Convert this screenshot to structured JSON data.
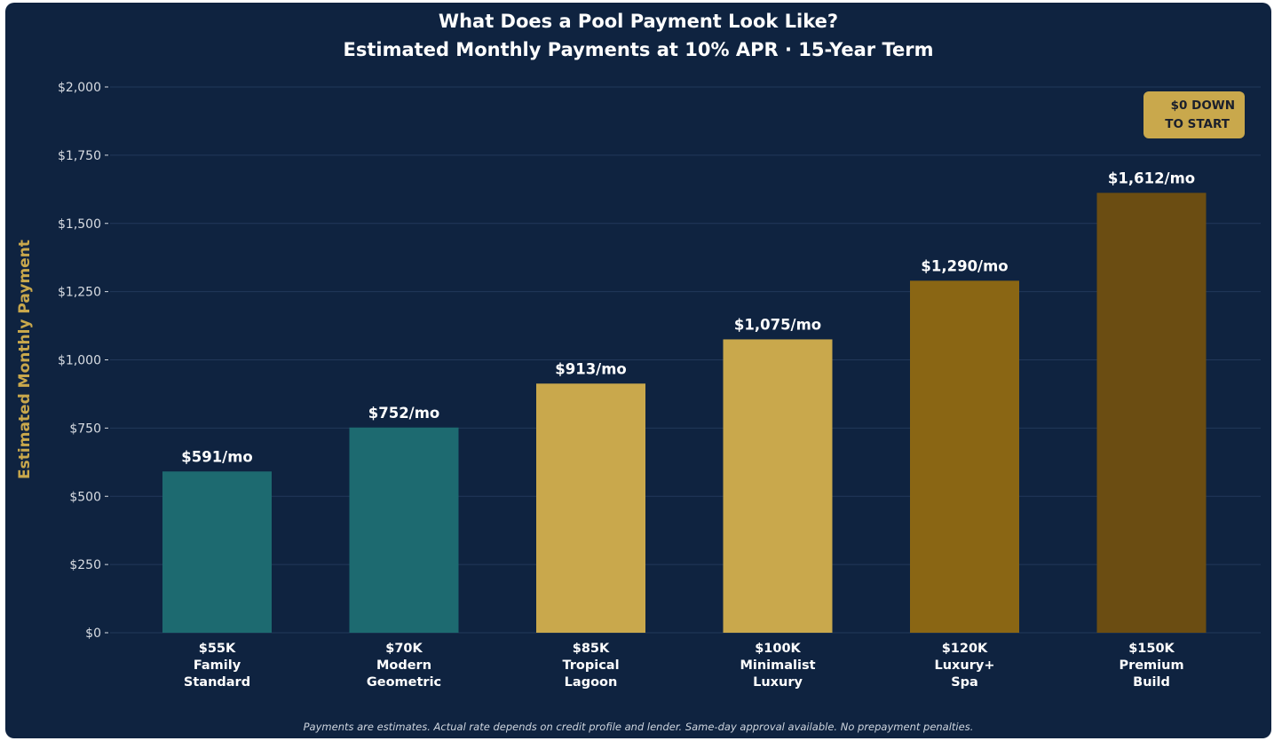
{
  "chart_data": {
    "type": "bar",
    "title": "What Does a Pool Payment Look Like?",
    "subtitle": "Estimated Monthly Payments at 10% APR · 15-Year Term",
    "ylabel": "Estimated Monthly Payment",
    "xlabel": "",
    "ylim": [
      0,
      2000
    ],
    "yticks": [
      "$2,000",
      "$1,750",
      "$1,500",
      "$1,250",
      "$1,000",
      "$750",
      "$500",
      "$250",
      "$0"
    ],
    "ytick_values": [
      2000,
      1750,
      1500,
      1250,
      1000,
      750,
      500,
      250,
      0
    ],
    "grid": true,
    "categories": [
      [
        "$55K",
        "Family",
        "Standard"
      ],
      [
        "$70K",
        "Modern",
        "Geometric"
      ],
      [
        "$85K",
        "Tropical",
        "Lagoon"
      ],
      [
        "$100K",
        "Minimalist",
        "Luxury"
      ],
      [
        "$120K",
        "Luxury+",
        "Spa"
      ],
      [
        "$150K",
        "Premium",
        "Build"
      ]
    ],
    "values": [
      591,
      752,
      913,
      1075,
      1290,
      1612
    ],
    "data_labels": [
      "$591/mo",
      "$752/mo",
      "$913/mo",
      "$1,075/mo",
      "$1,290/mo",
      "$1,612/mo"
    ],
    "bar_colors": [
      "#1d6a70",
      "#1d6a70",
      "#c9a84c",
      "#c9a84c",
      "#8a6614",
      "#6b4d12"
    ],
    "annotation": [
      "$0 DOWN",
      "TO START"
    ],
    "annotation_color": "#c9a84c",
    "footnote": "Payments are estimates. Actual rate depends on credit profile and lender. Same-day approval available. No prepayment penalties."
  }
}
